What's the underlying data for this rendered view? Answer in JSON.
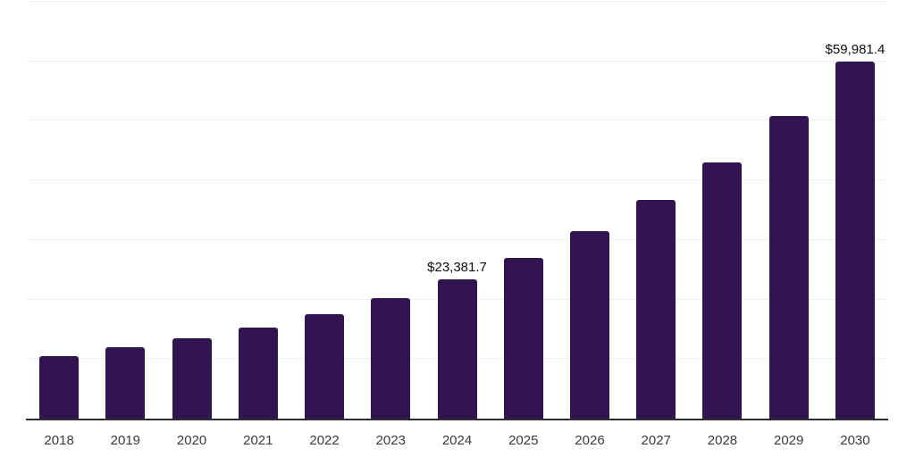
{
  "chart_data": {
    "type": "bar",
    "title": "",
    "xlabel": "",
    "ylabel": "",
    "categories": [
      "2018",
      "2019",
      "2020",
      "2021",
      "2022",
      "2023",
      "2024",
      "2025",
      "2026",
      "2027",
      "2028",
      "2029",
      "2030"
    ],
    "values": [
      10500,
      11950,
      13450,
      15250,
      17500,
      20200,
      23381.7,
      26950,
      31450,
      36700,
      42950,
      50850,
      59981.4
    ],
    "data_labels": [
      "",
      "",
      "",
      "",
      "",
      "",
      "$23,381.7",
      "",
      "",
      "",
      "",
      "",
      "$59,981.4"
    ],
    "ylim": [
      0,
      70000
    ],
    "ytick_interval": 10000,
    "ytick_labels_visible": false,
    "gridlines": "horizontal",
    "legend": "none",
    "bar_color": "#321450"
  },
  "colors": {
    "background": "#ffffff",
    "bar": "#321450",
    "axis_line": "#2e2e2e",
    "gridline": "#f0f0f0",
    "tick_label": "#3a3a3a",
    "data_label": "#0d0d0d"
  }
}
